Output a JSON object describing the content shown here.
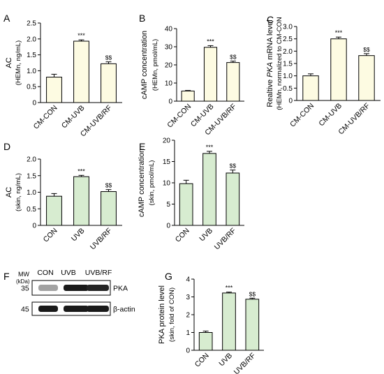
{
  "colors": {
    "yellow_fill": "#fdfbe2",
    "green_fill": "#d7ecd0",
    "stroke": "#000000"
  },
  "chart_data": [
    {
      "panel": "A",
      "type": "bar",
      "categories": [
        "CM-CON",
        "CM-UVB",
        "CM-UVB/RF"
      ],
      "values": [
        0.8,
        1.93,
        1.22
      ],
      "errors": [
        0.09,
        0.04,
        0.06
      ],
      "annotations": [
        "",
        "***",
        "$$"
      ],
      "ylabel": "AC",
      "ylabel2": "(HEMn, ng/mL)",
      "ylim": [
        0,
        2.5
      ],
      "yticks": [
        "0",
        "0.5",
        "1.0",
        "1.5",
        "2.0",
        "2.5"
      ],
      "fill": "yellow"
    },
    {
      "panel": "B",
      "type": "bar",
      "categories": [
        "CM-CON",
        "CM-UVB",
        "CM-UVB/RF"
      ],
      "values": [
        5.6,
        29.7,
        21.3
      ],
      "errors": [
        0.3,
        0.9,
        0.8
      ],
      "annotations": [
        "",
        "***",
        "$$"
      ],
      "ylabel": "cAMP concentration",
      "ylabel2": "(HEMn, pmol/mL)",
      "ylim": [
        0,
        40
      ],
      "yticks": [
        "0",
        "10",
        "20",
        "30",
        "40"
      ],
      "fill": "yellow"
    },
    {
      "panel": "C",
      "type": "bar",
      "categories": [
        "CM-CON",
        "CM-UVB",
        "CM-UVB/RF"
      ],
      "values": [
        1.0,
        2.5,
        1.82
      ],
      "errors": [
        0.08,
        0.07,
        0.08
      ],
      "annotations": [
        "",
        "***",
        "$$"
      ],
      "ylabel_parts": [
        "Realtive ",
        "PKA",
        " mRNA level"
      ],
      "ylabel2": "(HEMn, normalized to CM-CON",
      "ylim": [
        0,
        3.0
      ],
      "yticks": [
        "0",
        "0.5",
        "1.0",
        "1.5",
        "2.0",
        "2.5",
        "3.0"
      ],
      "fill": "yellow"
    },
    {
      "panel": "D",
      "type": "bar",
      "categories": [
        "CON",
        "UVB",
        "UVB/RF"
      ],
      "values": [
        0.88,
        1.47,
        1.02
      ],
      "errors": [
        0.08,
        0.04,
        0.06
      ],
      "annotations": [
        "",
        "***",
        "$$"
      ],
      "ylabel": "AC",
      "ylabel2": "(skin, ng/mL)",
      "ylim": [
        0,
        2.0
      ],
      "yticks": [
        "0",
        "0.5",
        "1.0",
        "1.5",
        "2.0"
      ],
      "fill": "green"
    },
    {
      "panel": "E",
      "type": "bar",
      "categories": [
        "CON",
        "UVB",
        "UVB/RF"
      ],
      "values": [
        9.8,
        16.9,
        12.3
      ],
      "errors": [
        0.8,
        0.5,
        0.7
      ],
      "annotations": [
        "",
        "***",
        "$$"
      ],
      "ylabel": "cAMP concentration",
      "ylabel2": "(skin, pmol/mL)",
      "ylim": [
        0,
        20
      ],
      "yticks": [
        "0",
        "5",
        "10",
        "15",
        "20"
      ],
      "fill": "green"
    },
    {
      "panel": "G",
      "type": "bar",
      "categories": [
        "CON",
        "UVB",
        "UVB/RF"
      ],
      "values": [
        1.0,
        3.22,
        2.87
      ],
      "errors": [
        0.08,
        0.05,
        0.06
      ],
      "annotations": [
        "",
        "***",
        "$$"
      ],
      "ylabel": "PKA protein level",
      "ylabel2": "(skin, fold of CON)",
      "ylim": [
        0,
        4
      ],
      "yticks": [
        "0",
        "1",
        "2",
        "3",
        "4"
      ],
      "fill": "green"
    }
  ],
  "blot": {
    "panel": "F",
    "mw_label": "MW",
    "kda_label": "(kDa)",
    "lanes": [
      "CON",
      "UVB",
      "UVB/RF"
    ],
    "rows": [
      {
        "mw": "35",
        "label": "PKA",
        "intensities": [
          0.35,
          1.0,
          0.95
        ]
      },
      {
        "mw": "45",
        "label": "β-actin",
        "intensities": [
          1.0,
          1.0,
          1.0
        ]
      }
    ]
  }
}
